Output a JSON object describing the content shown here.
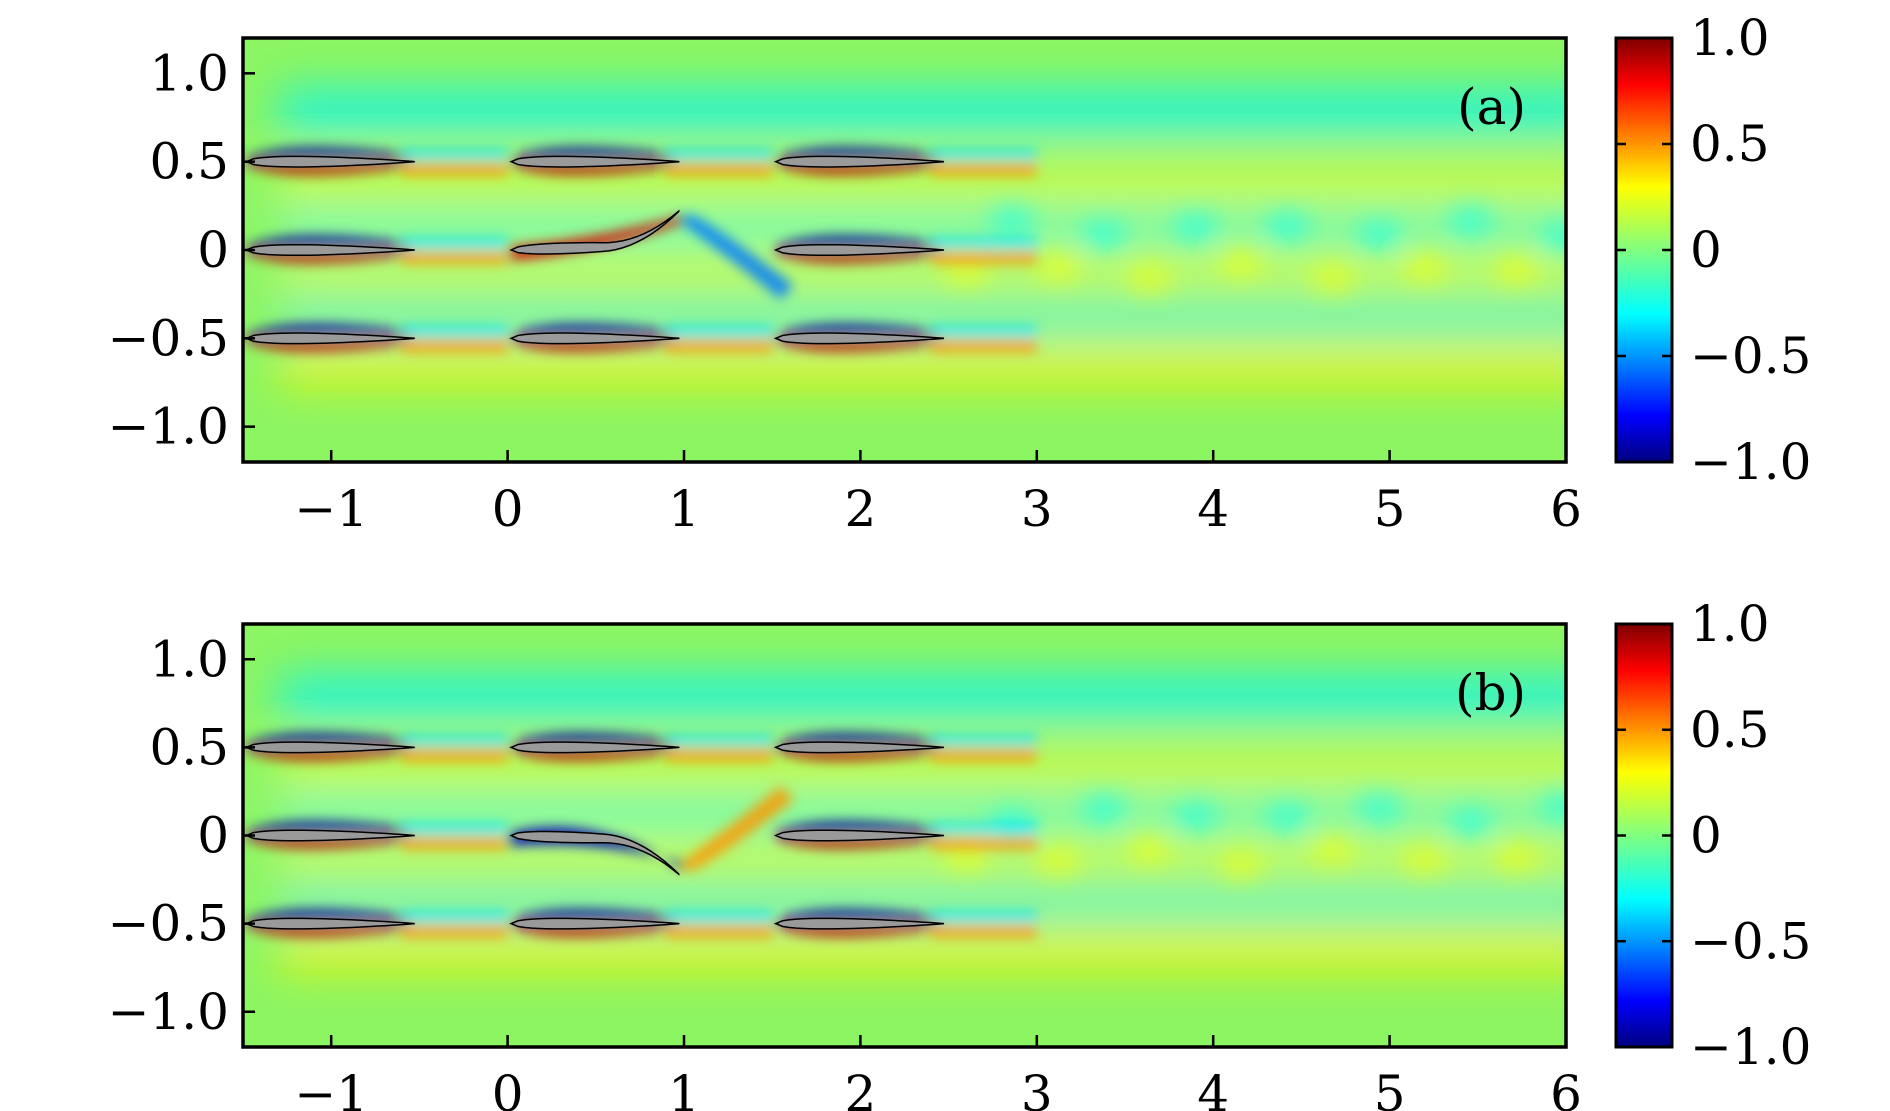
{
  "chart_data": [
    {
      "type": "heatmap",
      "panel_label": "(a)",
      "xlim": [
        -1.5,
        6
      ],
      "ylim": [
        -1.2,
        1.2
      ],
      "x_ticks": [
        -1,
        0,
        1,
        2,
        3,
        4,
        5,
        6
      ],
      "x_tick_labels": [
        "−1",
        "0",
        "1",
        "2",
        "3",
        "4",
        "5",
        "6"
      ],
      "y_ticks": [
        1.0,
        0.5,
        0,
        -0.5,
        -1.0
      ],
      "y_tick_labels": [
        "1.0",
        "0.5",
        "0",
        "−0.5",
        "−1.0"
      ],
      "colorbar": {
        "range": [
          -1.0,
          1.0
        ],
        "ticks": [
          1.0,
          0.5,
          0,
          -0.5,
          -1.0
        ],
        "tick_labels": [
          "1.0",
          "0.5",
          "0",
          "−0.5",
          "−1.0"
        ]
      },
      "center_foil_deflection": "up",
      "foils": [
        {
          "x": -1.5,
          "y": 0.5
        },
        {
          "x": 0,
          "y": 0.5
        },
        {
          "x": 1.5,
          "y": 0.5
        },
        {
          "x": -1.5,
          "y": 0
        },
        {
          "x": 0,
          "y": 0
        },
        {
          "x": 1.5,
          "y": 0
        },
        {
          "x": -1.5,
          "y": -0.5
        },
        {
          "x": 0,
          "y": -0.5
        },
        {
          "x": 1.5,
          "y": -0.5
        }
      ]
    },
    {
      "type": "heatmap",
      "panel_label": "(b)",
      "xlim": [
        -1.5,
        6
      ],
      "ylim": [
        -1.2,
        1.2
      ],
      "x_ticks": [
        -1,
        0,
        1,
        2,
        3,
        4,
        5,
        6
      ],
      "x_tick_labels": [
        "−1",
        "0",
        "1",
        "2",
        "3",
        "4",
        "5",
        "6"
      ],
      "y_ticks": [
        1.0,
        0.5,
        0,
        -0.5,
        -1.0
      ],
      "y_tick_labels": [
        "1.0",
        "0.5",
        "0",
        "−0.5",
        "−1.0"
      ],
      "colorbar": {
        "range": [
          -1.0,
          1.0
        ],
        "ticks": [
          1.0,
          0.5,
          0,
          -0.5,
          -1.0
        ],
        "tick_labels": [
          "1.0",
          "0.5",
          "0",
          "−0.5",
          "−1.0"
        ]
      },
      "center_foil_deflection": "down",
      "foils": [
        {
          "x": -1.5,
          "y": 0.5
        },
        {
          "x": 0,
          "y": 0.5
        },
        {
          "x": 1.5,
          "y": 0.5
        },
        {
          "x": -1.5,
          "y": 0
        },
        {
          "x": 0,
          "y": 0
        },
        {
          "x": 1.5,
          "y": 0
        },
        {
          "x": -1.5,
          "y": -0.5
        },
        {
          "x": 0,
          "y": -0.5
        },
        {
          "x": 1.5,
          "y": -0.5
        }
      ]
    }
  ],
  "colors": {
    "background": "#8cf562",
    "foil_fill": "#9a9a9a",
    "frame": "#000000"
  }
}
